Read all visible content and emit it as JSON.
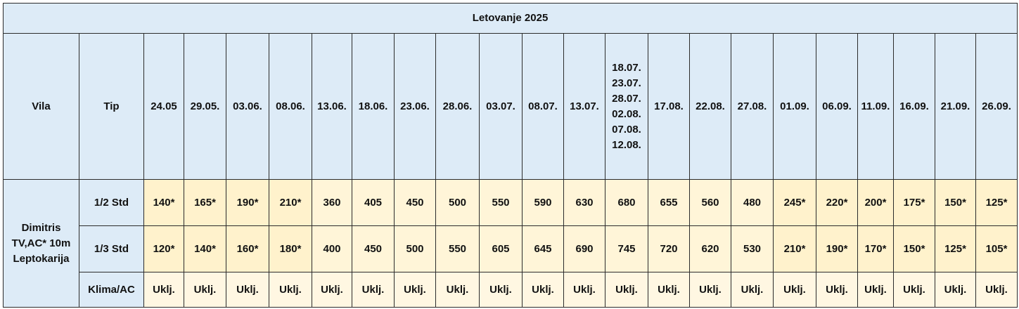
{
  "title": "Letovanje 2025",
  "header": [
    "Vila",
    "Tip",
    "24.05",
    "29.05.",
    "03.06.",
    "08.06.",
    "13.06.",
    "18.06.",
    "23.06.",
    "28.06.",
    "03.07.",
    "08.07.",
    "13.07.",
    "18.07.\n23.07.\n28.07.\n02.08.\n07.08.\n12.08.",
    "17.08.",
    "22.08.",
    "27.08.",
    "01.09.",
    "06.09.",
    "11.09.",
    "16.09.",
    "21.09.",
    "26.09."
  ],
  "vila": "Dimitris\nTV,AC* 10m\nLeptokarija",
  "rows": [
    [
      "1/2 Std",
      "140*",
      "165*",
      "190*",
      "210*",
      "360",
      "405",
      "450",
      "500",
      "550",
      "590",
      "630",
      "680",
      "655",
      "560",
      "480",
      "245*",
      "220*",
      "200*",
      "175*",
      "150*",
      "125*"
    ],
    [
      "1/3 Std",
      "120*",
      "140*",
      "160*",
      "180*",
      "400",
      "450",
      "500",
      "550",
      "605",
      "645",
      "690",
      "745",
      "720",
      "620",
      "530",
      "210*",
      "190*",
      "170*",
      "150*",
      "125*",
      "105*"
    ],
    [
      "Klima/AC",
      "Uklj.",
      "Uklj.",
      "Uklj.",
      "Uklj.",
      "Uklj.",
      "Uklj.",
      "Uklj.",
      "Uklj.",
      "Uklj.",
      "Uklj.",
      "Uklj.",
      "Uklj.",
      "Uklj.",
      "Uklj.",
      "Uklj.",
      "Uklj.",
      "Uklj.",
      "Uklj.",
      "Uklj.",
      "Uklj.",
      "Uklj."
    ]
  ]
}
